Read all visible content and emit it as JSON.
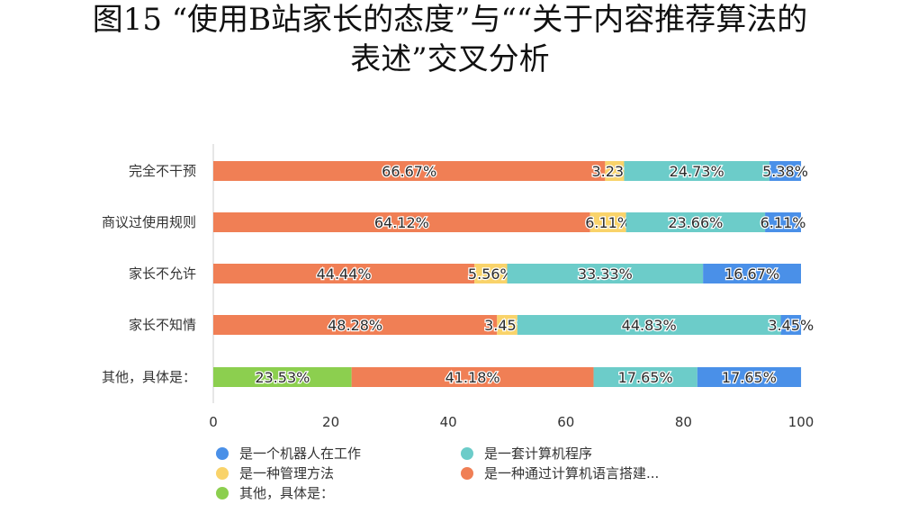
{
  "title_line1": "图15 “使用B站家长的态度”与““关于内容推荐算法的",
  "title_line2": "表述”交叉分析",
  "chart_data": {
    "type": "bar",
    "orientation": "horizontal",
    "stacked": true,
    "title": "图15 “使用B站家长的态度”与““关于内容推荐算法的表述”交叉分析",
    "categories": [
      "完全不干预",
      "商议过使用规则",
      "家长不允许",
      "家长不知情",
      "其他，具体是："
    ],
    "xlim": [
      0,
      100
    ],
    "xticks": [
      0,
      20,
      40,
      60,
      80,
      100
    ],
    "grid": false,
    "legend_position": "bottom",
    "series": [
      {
        "name": "其他，具体是：",
        "color": "#8ccf4f",
        "values": [
          0,
          0,
          0,
          0,
          23.53
        ],
        "labels": [
          "",
          "",
          "",
          "",
          "23.53%"
        ]
      },
      {
        "name": "是一种通过计算机语言搭建...",
        "color": "#f07f55",
        "values": [
          66.67,
          64.12,
          44.44,
          48.28,
          41.18
        ],
        "labels": [
          "66.67%",
          "64.12%",
          "44.44%",
          "48.28%",
          "41.18%"
        ]
      },
      {
        "name": "是一种管理方法",
        "color": "#f9d36a",
        "values": [
          3.23,
          6.11,
          5.56,
          3.45,
          0
        ],
        "labels": [
          "3.23%",
          "6.11%",
          "5.56%",
          "3.45%",
          ""
        ]
      },
      {
        "name": "是一套计算机程序",
        "color": "#6cccc9",
        "values": [
          24.73,
          23.66,
          33.33,
          44.83,
          17.65
        ],
        "labels": [
          "24.73%",
          "23.66%",
          "33.33%",
          "44.83%",
          "17.65%"
        ]
      },
      {
        "name": "是一个机器人在工作",
        "color": "#4a90e8",
        "values": [
          5.38,
          6.11,
          16.67,
          3.45,
          17.65
        ],
        "labels": [
          "5.38%",
          "6.11%",
          "16.67%",
          "3.45%",
          "17.65%"
        ]
      }
    ],
    "legend_order": [
      "是一个机器人在工作",
      "是一套计算机程序",
      "是一种管理方法",
      "是一种通过计算机语言搭建...",
      "其他，具体是："
    ]
  }
}
